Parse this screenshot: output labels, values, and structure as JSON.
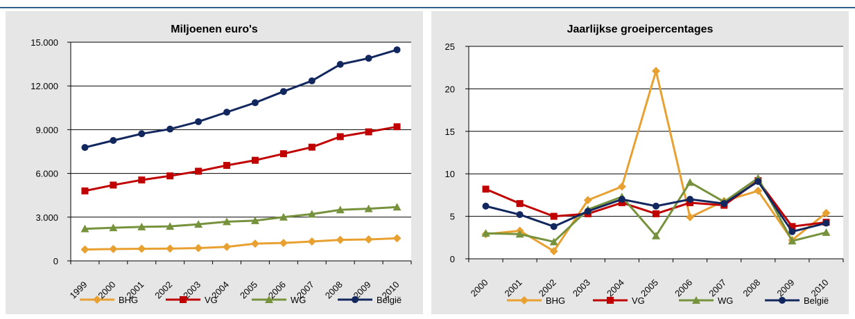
{
  "chart_data": [
    {
      "type": "line",
      "title": "Miljoenen euro's",
      "xlabel": "",
      "ylabel": "",
      "categories": [
        "1999",
        "2000",
        "2001",
        "2002",
        "2003",
        "2004",
        "2005",
        "2006",
        "2007",
        "2008",
        "2009",
        "2010"
      ],
      "ylim": [
        0,
        15000
      ],
      "yticks": [
        0,
        3000,
        6000,
        9000,
        12000,
        15000
      ],
      "ytick_labels": [
        "0",
        "3.000",
        "6.000",
        "9.000",
        "12.000",
        "15.000"
      ],
      "grid": true,
      "legend": "bottom",
      "series": [
        {
          "name": "BHG",
          "color": "#e8a030",
          "marker": "diamond",
          "values": [
            780,
            810,
            830,
            840,
            880,
            960,
            1180,
            1230,
            1330,
            1440,
            1470,
            1550
          ]
        },
        {
          "name": "VG",
          "color": "#c00000",
          "marker": "square",
          "values": [
            4800,
            5200,
            5550,
            5830,
            6150,
            6550,
            6900,
            7350,
            7800,
            8520,
            8850,
            9200
          ]
        },
        {
          "name": "WG",
          "color": "#76923c",
          "marker": "triangle",
          "values": [
            2200,
            2270,
            2330,
            2370,
            2510,
            2690,
            2760,
            3000,
            3210,
            3500,
            3580,
            3690
          ]
        },
        {
          "name": "België",
          "color": "#12275e",
          "marker": "circle",
          "values": [
            7780,
            8260,
            8720,
            9040,
            9550,
            10200,
            10850,
            11620,
            12350,
            13480,
            13900,
            14480
          ]
        }
      ]
    },
    {
      "type": "line",
      "title": "Jaarlijkse groeipercentages",
      "xlabel": "",
      "ylabel": "",
      "categories": [
        "2000",
        "2001",
        "2002",
        "2003",
        "2004",
        "2005",
        "2006",
        "2007",
        "2008",
        "2009",
        "2010"
      ],
      "ylim": [
        0,
        25
      ],
      "yticks": [
        0,
        5,
        10,
        15,
        20,
        25
      ],
      "ytick_labels": [
        "0",
        "5",
        "10",
        "15",
        "20",
        "25"
      ],
      "grid": true,
      "legend": "bottom",
      "series": [
        {
          "name": "BHG",
          "color": "#e8a030",
          "marker": "diamond",
          "values": [
            2.9,
            3.3,
            0.9,
            6.9,
            8.5,
            22.1,
            4.9,
            6.8,
            8.0,
            2.2,
            5.4
          ]
        },
        {
          "name": "VG",
          "color": "#c00000",
          "marker": "square",
          "values": [
            8.2,
            6.5,
            5.0,
            5.3,
            6.6,
            5.3,
            6.6,
            6.3,
            9.2,
            3.8,
            4.3
          ]
        },
        {
          "name": "WG",
          "color": "#76923c",
          "marker": "triangle",
          "values": [
            3.0,
            2.9,
            2.0,
            5.8,
            7.3,
            2.7,
            9.0,
            6.7,
            9.5,
            2.1,
            3.1
          ]
        },
        {
          "name": "België",
          "color": "#12275e",
          "marker": "circle",
          "values": [
            6.2,
            5.2,
            3.8,
            5.6,
            7.0,
            6.2,
            7.0,
            6.5,
            9.1,
            3.2,
            4.2
          ]
        }
      ]
    }
  ]
}
